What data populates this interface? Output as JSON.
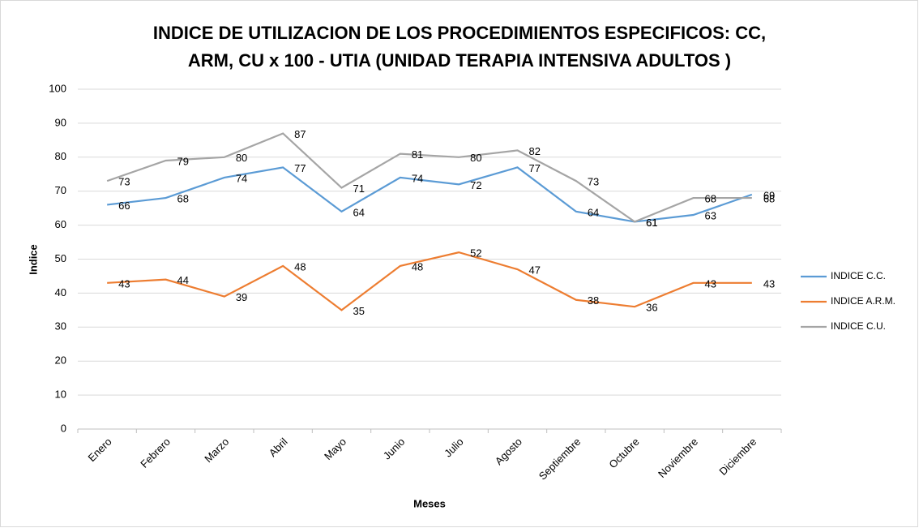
{
  "chart_data": {
    "type": "line",
    "title": [
      "INDICE DE UTILIZACION DE LOS PROCEDIMIENTOS ESPECIFICOS: CC,",
      "ARM, CU x 100 - UTIA (UNIDAD TERAPIA INTENSIVA ADULTOS )"
    ],
    "x_label": "Meses",
    "y_label": "Indice",
    "categories": [
      "Enero",
      "Febrero",
      "Marzo",
      "Abril",
      "Mayo",
      "Junio",
      "Julio",
      "Agosto",
      "Septiembre",
      "Octubre",
      "Noviembre",
      "Diciembre"
    ],
    "series": [
      {
        "name": "INDICE C.C.",
        "color": "#5b9bd5",
        "values": [
          66,
          68,
          74,
          77,
          64,
          74,
          72,
          77,
          64,
          61,
          63,
          69
        ]
      },
      {
        "name": "INDICE A.R.M.",
        "color": "#ed7d31",
        "values": [
          43,
          44,
          39,
          48,
          35,
          48,
          52,
          47,
          38,
          36,
          43,
          43
        ]
      },
      {
        "name": "INDICE C.U.",
        "color": "#a5a5a5",
        "values": [
          73,
          79,
          80,
          87,
          71,
          81,
          80,
          82,
          73,
          61,
          68,
          68
        ]
      }
    ],
    "ylim": [
      0,
      100
    ],
    "yticks": [
      0,
      10,
      20,
      30,
      40,
      50,
      60,
      70,
      80,
      90,
      100
    ],
    "grid": true,
    "legend": "right"
  }
}
